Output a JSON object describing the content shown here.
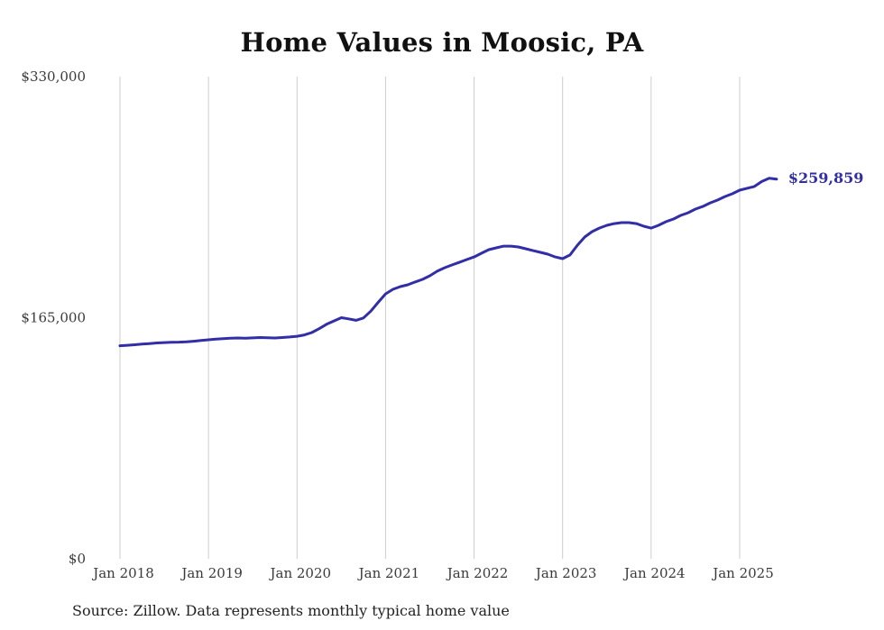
{
  "page": {
    "title": "Home Values in Moosic, PA",
    "source_note": "Source: Zillow. Data represents monthly typical home value"
  },
  "chart_data": {
    "type": "line",
    "title": "Home Values in Moosic, PA",
    "series_name": "Monthly typical home value",
    "start_month": "2018-01",
    "end_month": "2025-06",
    "x_tick_labels": [
      "Jan 2018",
      "Jan 2019",
      "Jan 2020",
      "Jan 2021",
      "Jan 2022",
      "Jan 2023",
      "Jan 2024",
      "Jan 2025"
    ],
    "x_tick_month_indices": [
      0,
      12,
      24,
      36,
      48,
      60,
      72,
      84
    ],
    "y_tick_labels": [
      "$0",
      "$165,000",
      "$330,000"
    ],
    "y_tick_values": [
      0,
      165000,
      330000
    ],
    "ylim": [
      0,
      330000
    ],
    "grid": "vertical-only",
    "legend": "none",
    "line_color": "#312ea7",
    "end_label": "$259,859",
    "end_value": 259859,
    "values": [
      145800,
      146100,
      146500,
      146900,
      147300,
      147700,
      148000,
      148200,
      148300,
      148500,
      148900,
      149400,
      149900,
      150300,
      150700,
      151000,
      151100,
      151000,
      151200,
      151400,
      151300,
      151100,
      151400,
      151800,
      152300,
      153200,
      154800,
      157500,
      160500,
      162800,
      165000,
      164200,
      163200,
      164800,
      169500,
      175500,
      181300,
      184400,
      186300,
      187500,
      189400,
      191200,
      193700,
      196800,
      199200,
      201100,
      202900,
      204800,
      206600,
      209100,
      211600,
      212800,
      214000,
      214000,
      213400,
      212200,
      210900,
      209700,
      208500,
      206600,
      205400,
      207900,
      214600,
      220200,
      223900,
      226400,
      228200,
      229400,
      230100,
      230100,
      229400,
      227600,
      226300,
      228200,
      230700,
      232500,
      235000,
      236800,
      239300,
      241100,
      243600,
      245500,
      247900,
      249800,
      252300,
      253600,
      254800,
      258200,
      260400,
      259859
    ]
  }
}
